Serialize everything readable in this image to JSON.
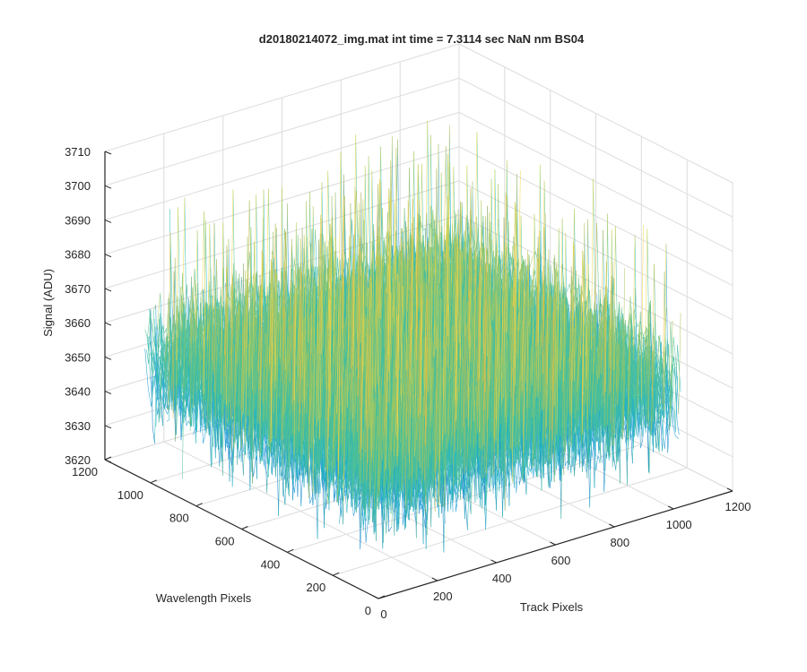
{
  "chart_data": {
    "type": "surface",
    "title": "d20180214072_img.mat int time = 7.3114 sec  NaN nm BS04",
    "xlabel": "Track Pixels",
    "ylabel": "Wavelength Pixels",
    "zlabel": "Signal (ADU)",
    "xlim": [
      0,
      1200
    ],
    "ylim": [
      0,
      1200
    ],
    "zlim": [
      3620,
      3710
    ],
    "x_ticks": [
      "0",
      "200",
      "400",
      "600",
      "800",
      "1000",
      "1200"
    ],
    "y_ticks": [
      "0",
      "200",
      "400",
      "600",
      "800",
      "1000",
      "1200"
    ],
    "z_ticks": [
      "3620",
      "3630",
      "3640",
      "3650",
      "3660",
      "3670",
      "3680",
      "3690",
      "3700",
      "3710"
    ],
    "data_extent": {
      "x": [
        0,
        1024
      ],
      "y": [
        0,
        1024
      ]
    },
    "signal_mean": 3655,
    "signal_noise_range": [
      3625,
      3705
    ],
    "grid": true,
    "colormap": "parula",
    "colors": [
      "#0072BD",
      "#1A9AD6",
      "#22B7B7",
      "#52C192",
      "#A6C75C",
      "#E0BE45",
      "#F0D84A"
    ]
  }
}
